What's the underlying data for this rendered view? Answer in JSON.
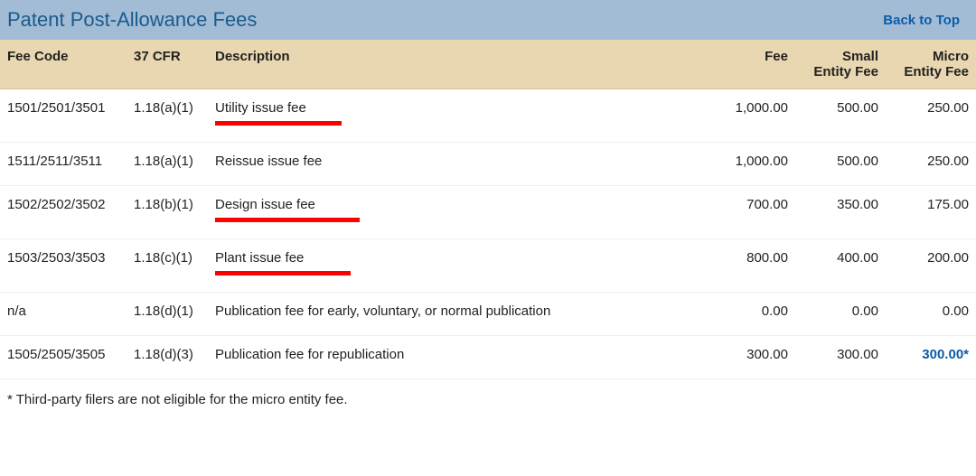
{
  "header": {
    "title": "Patent Post-Allowance Fees",
    "back_to_top": "Back to Top"
  },
  "columns": {
    "code": "Fee Code",
    "cfr": "37 CFR",
    "desc": "Description",
    "fee": "Fee",
    "small": "Small Entity Fee",
    "micro": "Micro Entity Fee"
  },
  "rows": [
    {
      "code": "1501/2501/3501",
      "cfr": "1.18(a)(1)",
      "desc": "Utility issue fee",
      "fee": "1,000.00",
      "small": "500.00",
      "micro": "250.00",
      "underline": true,
      "underline_width": 140,
      "micro_link": false
    },
    {
      "code": "1511/2511/3511",
      "cfr": "1.18(a)(1)",
      "desc": "Reissue issue fee",
      "fee": "1,000.00",
      "small": "500.00",
      "micro": "250.00",
      "underline": false,
      "underline_width": 0,
      "micro_link": false
    },
    {
      "code": "1502/2502/3502",
      "cfr": "1.18(b)(1)",
      "desc": "Design issue fee",
      "fee": "700.00",
      "small": "350.00",
      "micro": "175.00",
      "underline": true,
      "underline_width": 160,
      "micro_link": false
    },
    {
      "code": "1503/2503/3503",
      "cfr": "1.18(c)(1)",
      "desc": "Plant issue fee",
      "fee": "800.00",
      "small": "400.00",
      "micro": "200.00",
      "underline": true,
      "underline_width": 150,
      "micro_link": false
    },
    {
      "code": "n/a",
      "cfr": "1.18(d)(1)",
      "desc": "Publication fee for early, voluntary, or normal publication",
      "fee": "0.00",
      "small": "0.00",
      "micro": "0.00",
      "underline": false,
      "underline_width": 0,
      "micro_link": false
    },
    {
      "code": "1505/2505/3505",
      "cfr": "1.18(d)(3)",
      "desc": "Publication fee for republication",
      "fee": "300.00",
      "small": "300.00",
      "micro": "300.00*",
      "underline": false,
      "underline_width": 0,
      "micro_link": true
    }
  ],
  "footnote": "* Third-party filers are not eligible for the micro entity fee.",
  "style": {
    "title_bg": "#a3bcd6",
    "title_color": "#1a5b8a",
    "header_row_bg": "#e8d7b0",
    "underline_color": "#ff0000",
    "link_color": "#0b5ca8",
    "row_border": "#eeeeee"
  }
}
